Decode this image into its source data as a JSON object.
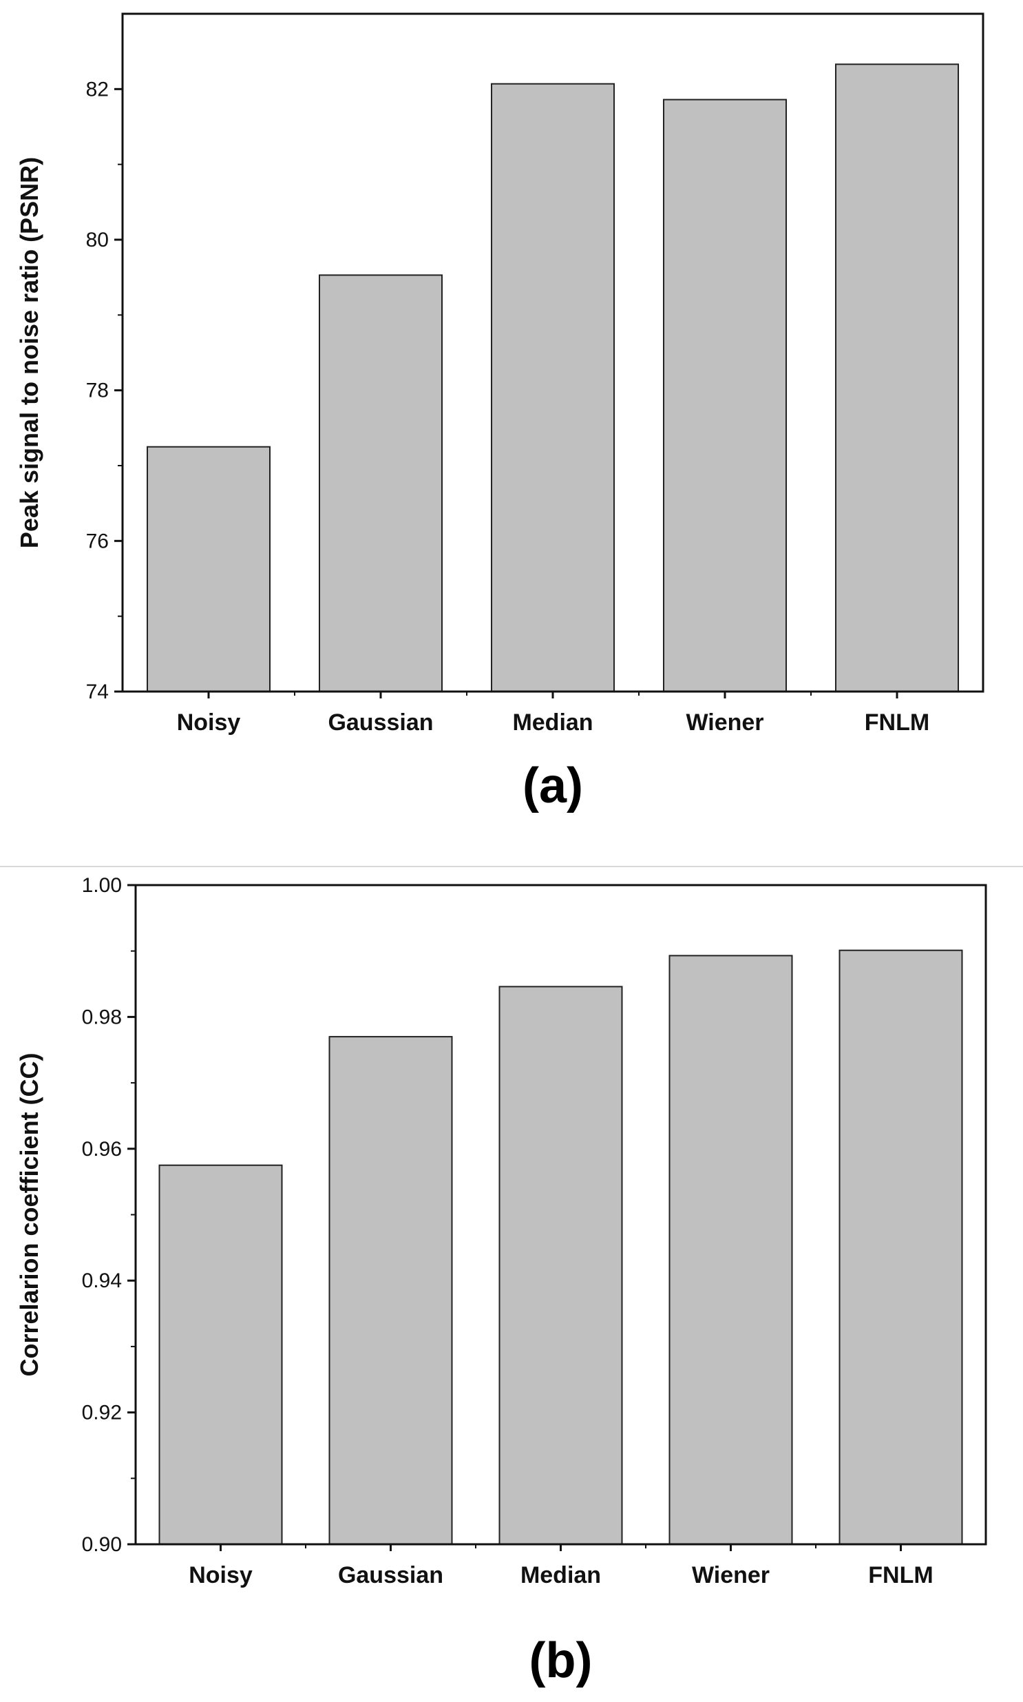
{
  "chart_data": [
    {
      "type": "bar",
      "panel_label": "(a)",
      "categories": [
        "Noisy",
        "Gaussian",
        "Median",
        "Wiener",
        "FNLM"
      ],
      "values": [
        77.25,
        79.53,
        82.07,
        81.86,
        82.33
      ],
      "ylabel": "Peak signal to noise ratio (PSNR)",
      "xlabel": "",
      "ylim": [
        74,
        83
      ],
      "yticks": [
        74,
        76,
        78,
        80,
        82
      ],
      "ytick_labels": [
        "74",
        "76",
        "78",
        "80",
        "82"
      ],
      "grid": false,
      "bar_color": "#c0c0c0"
    },
    {
      "type": "bar",
      "panel_label": "(b)",
      "categories": [
        "Noisy",
        "Gaussian",
        "Median",
        "Wiener",
        "FNLM"
      ],
      "values": [
        0.9575,
        0.977,
        0.9846,
        0.9893,
        0.9901
      ],
      "ylabel": "Correlarion coefficient (CC)",
      "xlabel": "",
      "ylim": [
        0.9,
        1.0
      ],
      "yticks": [
        0.9,
        0.92,
        0.94,
        0.96,
        0.98,
        1.0
      ],
      "ytick_labels": [
        "0.90",
        "0.92",
        "0.94",
        "0.96",
        "0.98",
        "1.00"
      ],
      "grid": false,
      "bar_color": "#c0c0c0"
    }
  ]
}
